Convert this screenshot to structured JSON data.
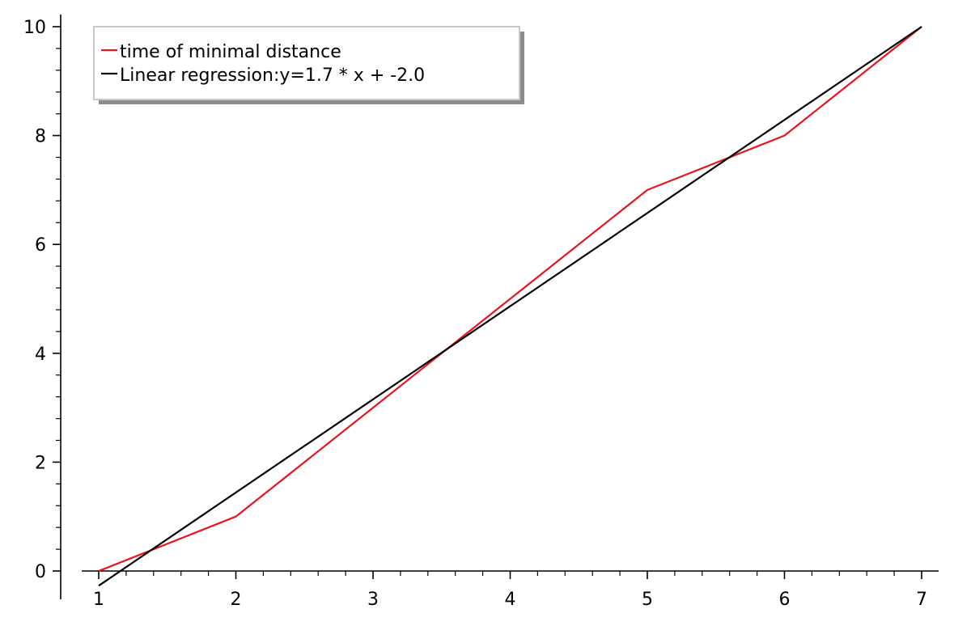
{
  "chart_data": {
    "type": "line",
    "title": "",
    "xlabel": "",
    "ylabel": "",
    "xlim": [
      1,
      7
    ],
    "ylim": [
      0,
      10
    ],
    "x_ticks": [
      1,
      2,
      3,
      4,
      5,
      6,
      7
    ],
    "y_ticks": [
      0,
      2,
      4,
      6,
      8,
      10
    ],
    "x_minor_step": 0.2,
    "y_minor_step": 0.4,
    "grid": false,
    "legend_position": "top-left",
    "series": [
      {
        "name": "time of minimal distance",
        "color": "#e8141e",
        "x": [
          1,
          2,
          3,
          4,
          5,
          6,
          7
        ],
        "y": [
          0,
          1,
          3,
          5,
          7,
          8,
          10
        ]
      },
      {
        "name": "Linear regression:y=1.7 * x + -2.0",
        "color": "#000000",
        "x": [
          1,
          7
        ],
        "y": [
          -0.27,
          10
        ]
      }
    ]
  }
}
